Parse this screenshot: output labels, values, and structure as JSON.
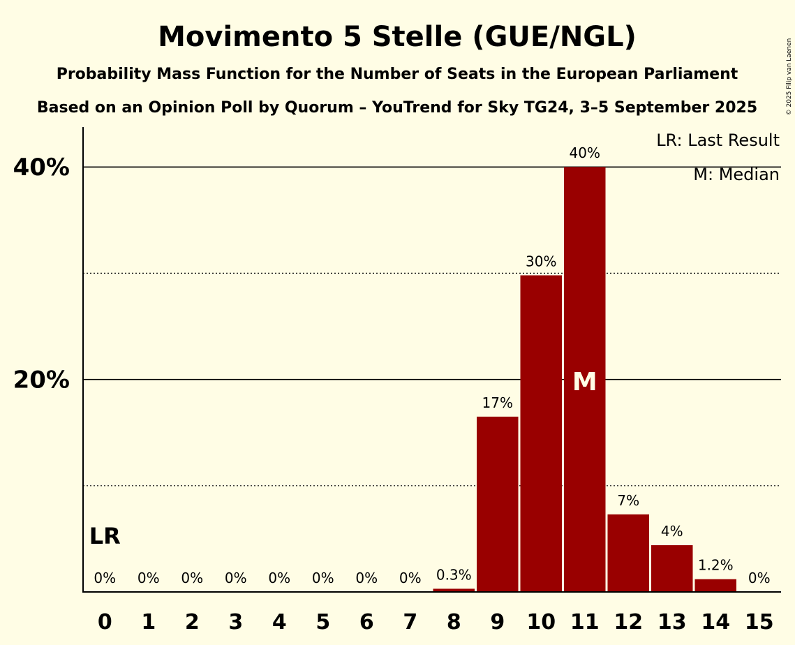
{
  "chart_data": {
    "type": "bar",
    "title": "Movimento 5 Stelle (GUE/NGL)",
    "subtitle": "Probability Mass Function for the Number of Seats in the European Parliament",
    "subtitle2": "Based on an Opinion Poll by Quorum – YouTrend for Sky TG24, 3–5 September 2025",
    "copyright": "© 2025 Filip van Laenen",
    "categories": [
      "0",
      "1",
      "2",
      "3",
      "4",
      "5",
      "6",
      "7",
      "8",
      "9",
      "10",
      "11",
      "12",
      "13",
      "14",
      "15"
    ],
    "values": [
      0,
      0,
      0,
      0,
      0,
      0,
      0,
      0,
      0.3,
      16.5,
      29.8,
      40.0,
      7.3,
      4.4,
      1.2,
      0
    ],
    "value_labels": [
      "0%",
      "0%",
      "0%",
      "0%",
      "0%",
      "0%",
      "0%",
      "0%",
      "0.3%",
      "17%",
      "30%",
      "40%",
      "7%",
      "4%",
      "1.2%",
      "0%"
    ],
    "ytick_labels": [
      {
        "value": 20,
        "label": "20%"
      },
      {
        "value": 40,
        "label": "40%"
      }
    ],
    "gridlines_solid": [
      20,
      40
    ],
    "gridlines_dotted": [
      10,
      30
    ],
    "ylim": [
      0,
      43.7
    ],
    "bar_color": "#990000",
    "median_index": 11,
    "median_marker": "M",
    "last_result_index": 0,
    "last_result_marker": "LR",
    "legend": [
      "LR: Last Result",
      "M: Median"
    ]
  }
}
